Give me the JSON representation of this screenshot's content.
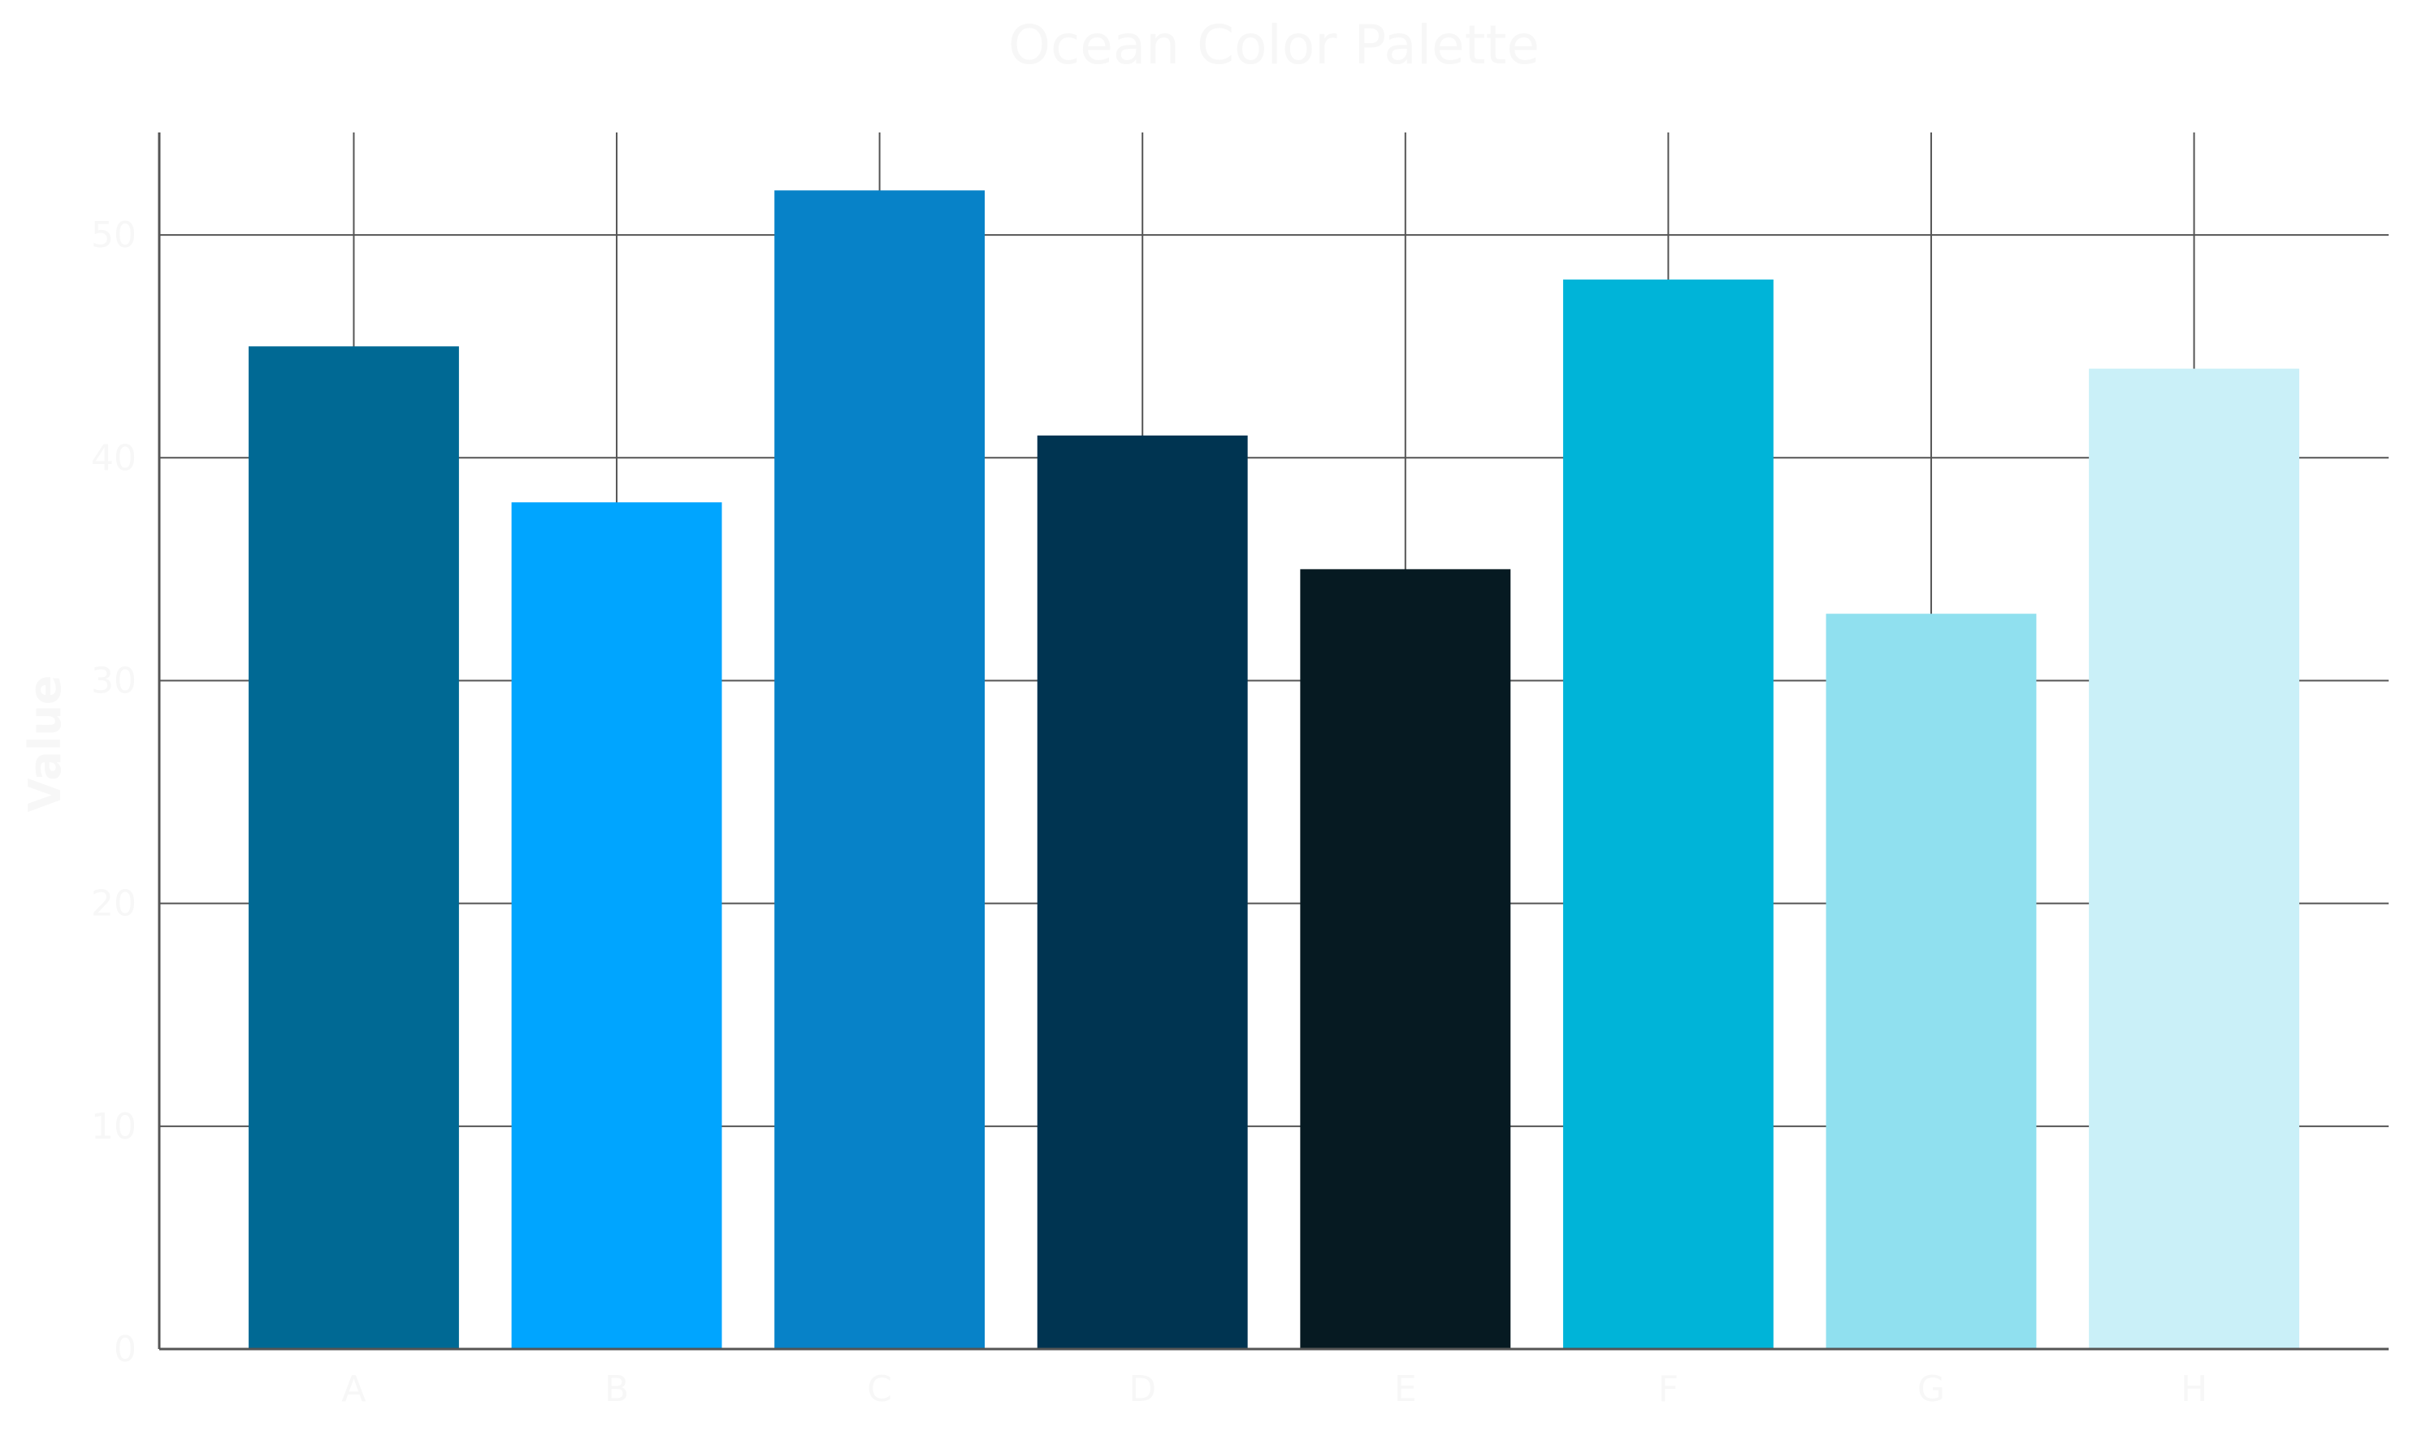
{
  "chart_data": {
    "type": "bar",
    "title": "Ocean Color Palette",
    "xlabel": "",
    "ylabel": "Value",
    "categories": [
      "A",
      "B",
      "C",
      "D",
      "E",
      "F",
      "G",
      "H"
    ],
    "values": [
      45,
      38,
      52,
      41,
      35,
      48,
      33,
      44
    ],
    "colors": [
      "#006994",
      "#00A5FF",
      "#0782C8",
      "#003451",
      "#061A22",
      "#00B4D8",
      "#90E0EF",
      "#CAF0F8"
    ],
    "ylim": [
      0,
      54.6
    ],
    "yticks": [
      0,
      10,
      20,
      30,
      40,
      50
    ],
    "grid": true,
    "legend": "none"
  }
}
